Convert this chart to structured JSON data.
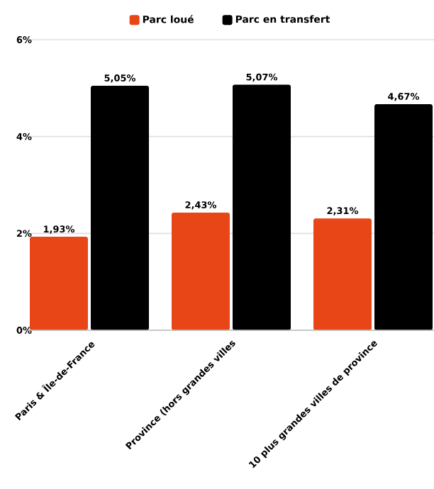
{
  "chart_data": {
    "type": "bar",
    "categories": [
      "Paris & Île-de-France",
      "Province (hors grandes villes",
      "10 plus grandes villes de province"
    ],
    "series": [
      {
        "name": "Parc loué",
        "color": "#e84616",
        "values": [
          1.93,
          2.43,
          2.31
        ],
        "value_labels": [
          "1,93%",
          "2,43%",
          "2,31%"
        ]
      },
      {
        "name": "Parc en transfert",
        "color": "#000000",
        "values": [
          5.05,
          5.07,
          4.67
        ],
        "value_labels": [
          "5,05%",
          "5,07%",
          "4,67%"
        ]
      }
    ],
    "ylim": [
      0,
      6
    ],
    "yticks": [
      {
        "value": 0,
        "label": "0%"
      },
      {
        "value": 2,
        "label": "2%"
      },
      {
        "value": 4,
        "label": "4%"
      },
      {
        "value": 6,
        "label": "6%"
      }
    ],
    "grid": "y",
    "legend": "top"
  }
}
